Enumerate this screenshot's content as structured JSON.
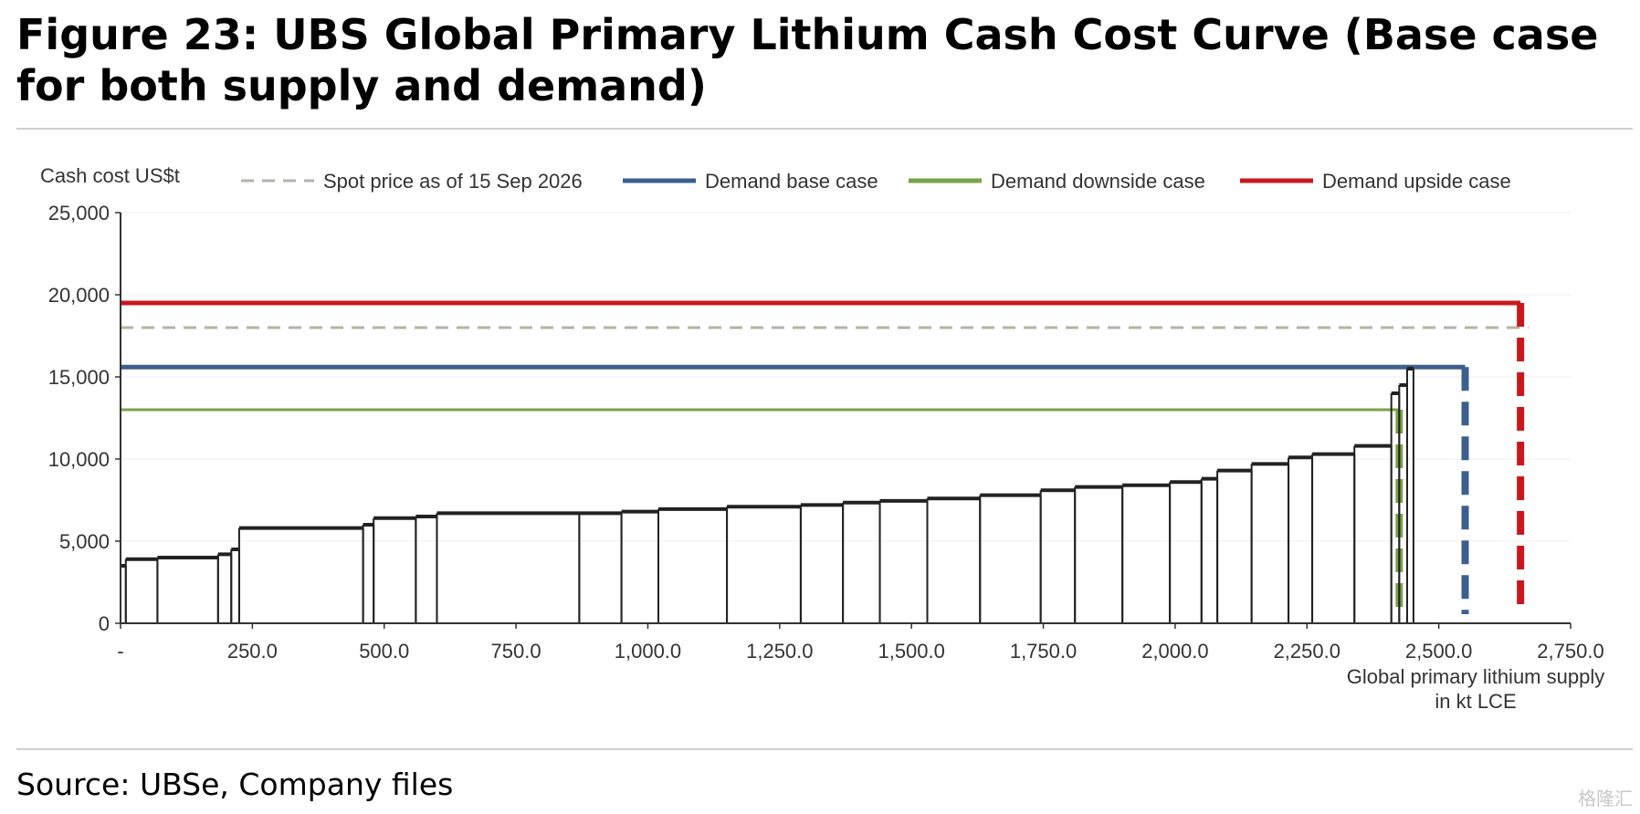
{
  "header": {
    "title": "Figure 23: UBS Global Primary Lithium Cash Cost Curve (Base case for both supply and demand)"
  },
  "footer": {
    "source": "Source: UBSe, Company files",
    "watermark": "格隆汇"
  },
  "chart_data": {
    "type": "cost_curve",
    "ylabel": "Cash cost US$t",
    "xlabel": "Global primary lithium supply in kt LCE",
    "xlabel_lines": [
      "Global primary lithium supply",
      "in kt LCE"
    ],
    "xlim": [
      0,
      2750
    ],
    "ylim": [
      0,
      25000
    ],
    "x_ticks": [
      0,
      250,
      500,
      750,
      1000,
      1250,
      1500,
      1750,
      2000,
      2250,
      2500,
      2750
    ],
    "x_tick_labels": [
      "-",
      "250.0",
      "500.0",
      "750.0",
      "1,000.0",
      "1,250.0",
      "1,500.0",
      "1,750.0",
      "2,000.0",
      "2,250.0",
      "2,500.0",
      "2,750.0"
    ],
    "y_ticks": [
      0,
      5000,
      10000,
      15000,
      20000,
      25000
    ],
    "y_tick_labels": [
      "0",
      "5,000",
      "10,000",
      "15,000",
      "20,000",
      "25,000"
    ],
    "grid": "horizontal",
    "legend_position": "top",
    "legend": [
      {
        "key": "spot",
        "label": "Spot price as of 15 Sep 2026",
        "color": "#b5b3a6",
        "style": "dashed"
      },
      {
        "key": "base",
        "label": "Demand base case",
        "color": "#3d5f8f",
        "style": "solid"
      },
      {
        "key": "down",
        "label": "Demand downside case",
        "color": "#79a34a",
        "style": "solid"
      },
      {
        "key": "up",
        "label": "Demand upside case",
        "color": "#c8181e",
        "style": "solid"
      }
    ],
    "reference_lines": [
      {
        "key": "spot",
        "y": 18000,
        "x_end": 2670
      },
      {
        "key": "up",
        "y": 19500,
        "x_end": 2655
      },
      {
        "key": "base",
        "y": 15600,
        "x_end": 2550
      },
      {
        "key": "down",
        "y": 13000,
        "x_end": 2425
      }
    ],
    "curve_color": "#222222",
    "cost_curve": [
      {
        "x0": 0,
        "x1": 10,
        "cost": 3500
      },
      {
        "x0": 10,
        "x1": 70,
        "cost": 3900
      },
      {
        "x0": 70,
        "x1": 185,
        "cost": 4000
      },
      {
        "x0": 185,
        "x1": 210,
        "cost": 4200
      },
      {
        "x0": 210,
        "x1": 225,
        "cost": 4500
      },
      {
        "x0": 225,
        "x1": 460,
        "cost": 5800
      },
      {
        "x0": 460,
        "x1": 480,
        "cost": 6000
      },
      {
        "x0": 480,
        "x1": 560,
        "cost": 6400
      },
      {
        "x0": 560,
        "x1": 600,
        "cost": 6500
      },
      {
        "x0": 600,
        "x1": 870,
        "cost": 6700
      },
      {
        "x0": 870,
        "x1": 950,
        "cost": 6700
      },
      {
        "x0": 950,
        "x1": 1020,
        "cost": 6800
      },
      {
        "x0": 1020,
        "x1": 1150,
        "cost": 6950
      },
      {
        "x0": 1150,
        "x1": 1290,
        "cost": 7100
      },
      {
        "x0": 1290,
        "x1": 1370,
        "cost": 7200
      },
      {
        "x0": 1370,
        "x1": 1440,
        "cost": 7350
      },
      {
        "x0": 1440,
        "x1": 1530,
        "cost": 7450
      },
      {
        "x0": 1530,
        "x1": 1630,
        "cost": 7600
      },
      {
        "x0": 1630,
        "x1": 1745,
        "cost": 7800
      },
      {
        "x0": 1745,
        "x1": 1810,
        "cost": 8100
      },
      {
        "x0": 1810,
        "x1": 1900,
        "cost": 8300
      },
      {
        "x0": 1900,
        "x1": 1990,
        "cost": 8400
      },
      {
        "x0": 1990,
        "x1": 2050,
        "cost": 8600
      },
      {
        "x0": 2050,
        "x1": 2080,
        "cost": 8800
      },
      {
        "x0": 2080,
        "x1": 2145,
        "cost": 9300
      },
      {
        "x0": 2145,
        "x1": 2215,
        "cost": 9700
      },
      {
        "x0": 2215,
        "x1": 2260,
        "cost": 10100
      },
      {
        "x0": 2260,
        "x1": 2340,
        "cost": 10300
      },
      {
        "x0": 2340,
        "x1": 2410,
        "cost": 10800
      },
      {
        "x0": 2410,
        "x1": 2425,
        "cost": 14000
      },
      {
        "x0": 2425,
        "x1": 2440,
        "cost": 14500
      },
      {
        "x0": 2440,
        "x1": 2452,
        "cost": 15500
      }
    ]
  }
}
